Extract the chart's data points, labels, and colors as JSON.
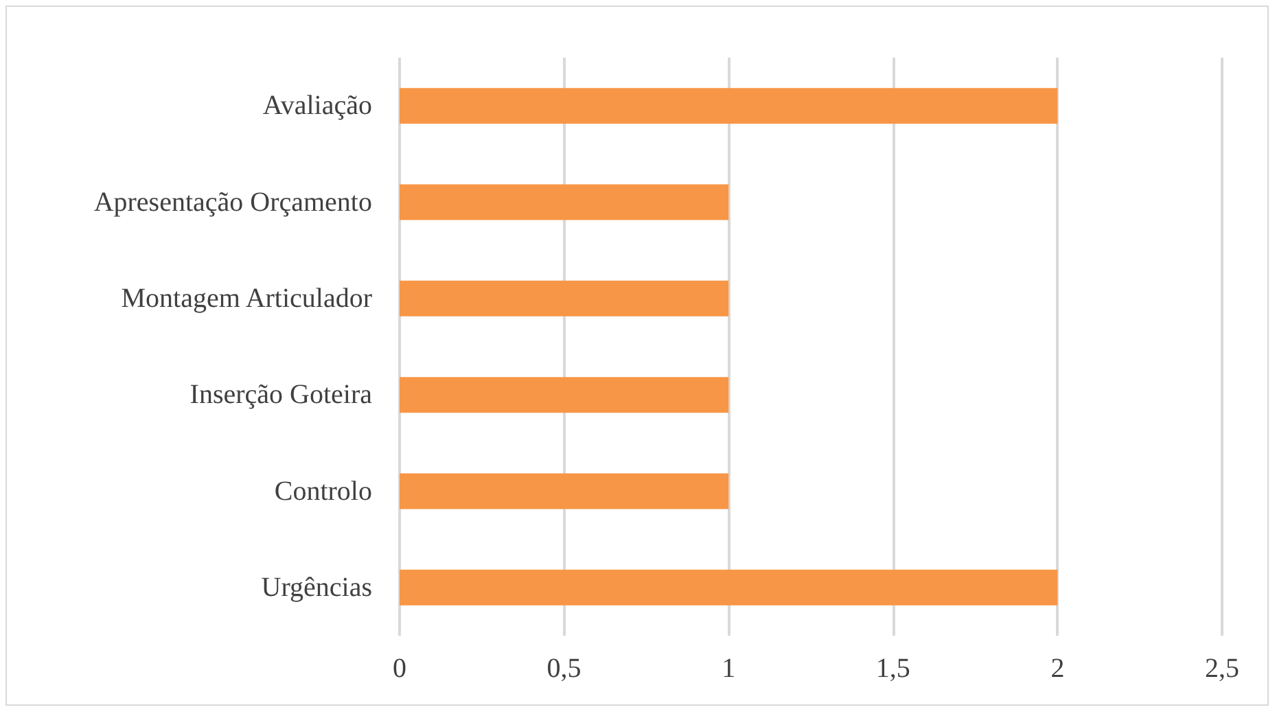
{
  "chart_data": {
    "type": "bar",
    "orientation": "horizontal",
    "categories": [
      "Avaliação",
      "Apresentação Orçamento",
      "Montagem Articulador",
      "Inserção Goteira",
      "Controlo",
      "Urgências"
    ],
    "values": [
      2,
      1,
      1,
      1,
      1,
      2
    ],
    "color": "#f79646",
    "xlim": [
      0,
      2.5
    ],
    "xticks": [
      0,
      {
        "value": 0.5,
        "label": "0,5"
      },
      1,
      {
        "value": 1.5,
        "label": "1,5"
      },
      2,
      {
        "value": 2.5,
        "label": "2,5"
      }
    ],
    "grid": "x"
  }
}
